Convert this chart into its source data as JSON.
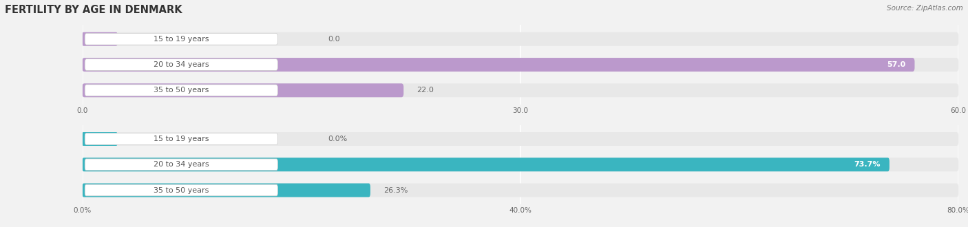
{
  "title": "FERTILITY BY AGE IN DENMARK",
  "source": "Source: ZipAtlas.com",
  "top_chart": {
    "categories": [
      "15 to 19 years",
      "20 to 34 years",
      "35 to 50 years"
    ],
    "values": [
      0.0,
      57.0,
      22.0
    ],
    "bar_color": "#bb99cc",
    "xlim_max": 60,
    "xticks": [
      0.0,
      30.0,
      60.0
    ],
    "xtick_labels": [
      "0.0",
      "30.0",
      "60.0"
    ],
    "bar_bg_color": "#e8e8e8"
  },
  "bottom_chart": {
    "categories": [
      "15 to 19 years",
      "20 to 34 years",
      "35 to 50 years"
    ],
    "values": [
      0.0,
      73.7,
      26.3
    ],
    "bar_color": "#3ab5c0",
    "xlim_max": 80,
    "xticks": [
      0.0,
      40.0,
      80.0
    ],
    "xtick_labels": [
      "0.0%",
      "40.0%",
      "80.0%"
    ],
    "bar_bg_color": "#e8e8e8"
  },
  "bg_color": "#f2f2f2",
  "bar_height": 0.52,
  "label_fontsize": 8.0,
  "value_fontsize": 8.0,
  "title_fontsize": 10.5,
  "source_fontsize": 7.5,
  "label_box_color": "#ffffff",
  "label_text_color": "#555555",
  "value_color_inside": "#ffffff",
  "value_color_outside": "#666666"
}
